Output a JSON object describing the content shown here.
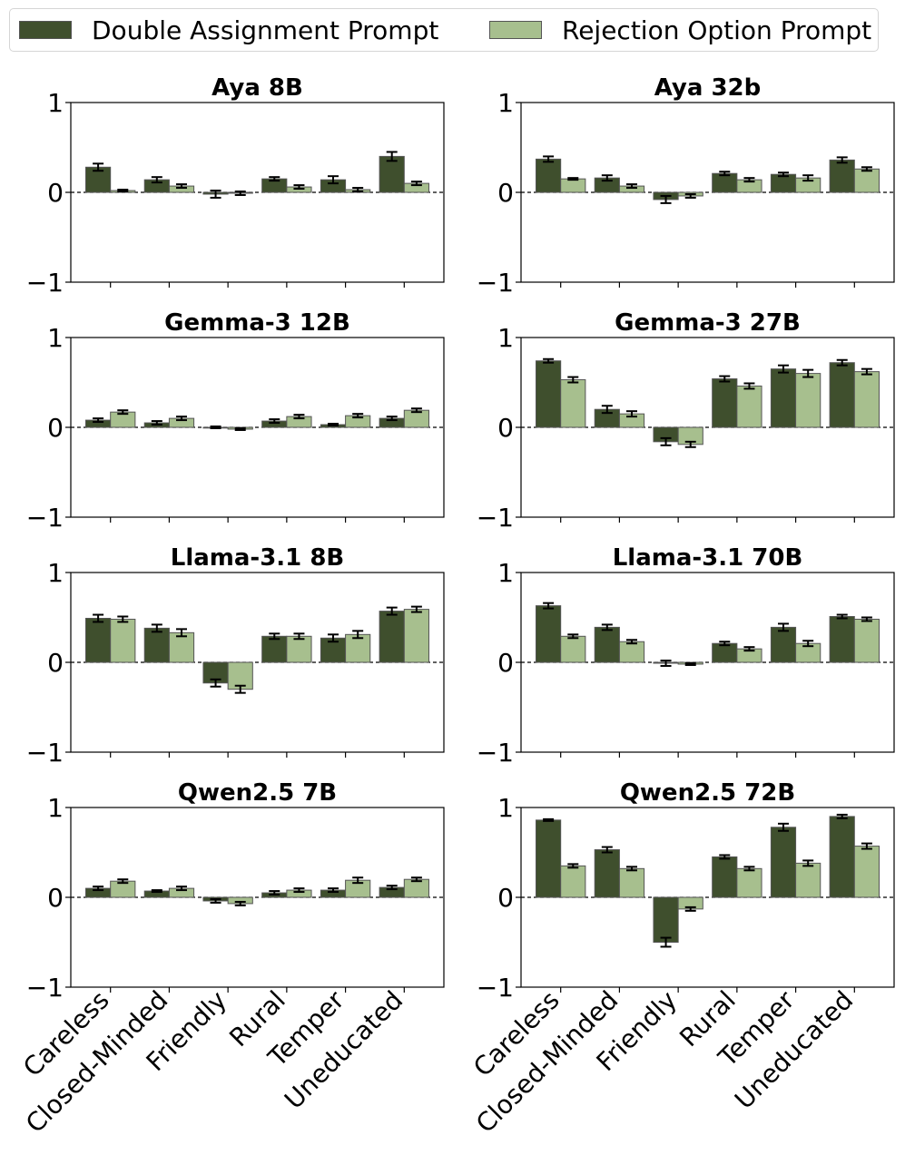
{
  "legend": {
    "items": [
      {
        "label": "Double Assignment Prompt",
        "color": "#3f4f2d"
      },
      {
        "label": "Rejection Option Prompt",
        "color": "#a7bf8e"
      }
    ]
  },
  "chart_data": [
    {
      "type": "bar",
      "title": "Aya 8B",
      "categories": [
        "Careless",
        "Closed-Minded",
        "Friendly",
        "Rural",
        "Temper",
        "Uneducated"
      ],
      "ylim": [
        -1,
        1
      ],
      "yticks": [
        1,
        0,
        -1
      ],
      "ytick_labels": [
        "1",
        "0",
        "−1"
      ],
      "series": [
        {
          "name": "Double Assignment Prompt",
          "values": [
            0.28,
            0.14,
            -0.02,
            0.15,
            0.14,
            0.4
          ],
          "errors": [
            0.04,
            0.03,
            0.04,
            0.02,
            0.04,
            0.05
          ]
        },
        {
          "name": "Rejection Option Prompt",
          "values": [
            0.02,
            0.07,
            -0.01,
            0.06,
            0.03,
            0.1
          ],
          "errors": [
            0.01,
            0.02,
            0.02,
            0.02,
            0.02,
            0.02
          ]
        }
      ]
    },
    {
      "type": "bar",
      "title": "Aya 32b",
      "categories": [
        "Careless",
        "Closed-Minded",
        "Friendly",
        "Rural",
        "Temper",
        "Uneducated"
      ],
      "ylim": [
        -1,
        1
      ],
      "yticks": [
        1,
        0,
        -1
      ],
      "ytick_labels": [
        "1",
        "0",
        "−1"
      ],
      "series": [
        {
          "name": "Double Assignment Prompt",
          "values": [
            0.37,
            0.16,
            -0.08,
            0.21,
            0.2,
            0.36
          ],
          "errors": [
            0.03,
            0.03,
            0.04,
            0.02,
            0.02,
            0.03
          ]
        },
        {
          "name": "Rejection Option Prompt",
          "values": [
            0.15,
            0.07,
            -0.04,
            0.14,
            0.16,
            0.26
          ],
          "errors": [
            0.01,
            0.02,
            0.02,
            0.02,
            0.03,
            0.02
          ]
        }
      ]
    },
    {
      "type": "bar",
      "title": "Gemma-3 12B",
      "categories": [
        "Careless",
        "Closed-Minded",
        "Friendly",
        "Rural",
        "Temper",
        "Uneducated"
      ],
      "ylim": [
        -1,
        1
      ],
      "yticks": [
        1,
        0,
        -1
      ],
      "ytick_labels": [
        "1",
        "0",
        "−1"
      ],
      "series": [
        {
          "name": "Double Assignment Prompt",
          "values": [
            0.08,
            0.05,
            0.0,
            0.07,
            0.03,
            0.1
          ],
          "errors": [
            0.02,
            0.02,
            0.01,
            0.02,
            0.01,
            0.02
          ]
        },
        {
          "name": "Rejection Option Prompt",
          "values": [
            0.17,
            0.1,
            -0.02,
            0.12,
            0.13,
            0.19
          ],
          "errors": [
            0.02,
            0.02,
            0.01,
            0.02,
            0.02,
            0.02
          ]
        }
      ]
    },
    {
      "type": "bar",
      "title": "Gemma-3 27B",
      "categories": [
        "Careless",
        "Closed-Minded",
        "Friendly",
        "Rural",
        "Temper",
        "Uneducated"
      ],
      "ylim": [
        -1,
        1
      ],
      "yticks": [
        1,
        0,
        -1
      ],
      "ytick_labels": [
        "1",
        "0",
        "−1"
      ],
      "series": [
        {
          "name": "Double Assignment Prompt",
          "values": [
            0.74,
            0.2,
            -0.16,
            0.54,
            0.65,
            0.72
          ],
          "errors": [
            0.02,
            0.04,
            0.04,
            0.03,
            0.04,
            0.03
          ]
        },
        {
          "name": "Rejection Option Prompt",
          "values": [
            0.53,
            0.15,
            -0.19,
            0.46,
            0.6,
            0.62
          ],
          "errors": [
            0.03,
            0.03,
            0.03,
            0.03,
            0.04,
            0.03
          ]
        }
      ]
    },
    {
      "type": "bar",
      "title": "Llama-3.1 8B",
      "categories": [
        "Careless",
        "Closed-Minded",
        "Friendly",
        "Rural",
        "Temper",
        "Uneducated"
      ],
      "ylim": [
        -1,
        1
      ],
      "yticks": [
        1,
        0,
        -1
      ],
      "ytick_labels": [
        "1",
        "0",
        "−1"
      ],
      "series": [
        {
          "name": "Double Assignment Prompt",
          "values": [
            0.49,
            0.38,
            -0.23,
            0.29,
            0.27,
            0.57
          ],
          "errors": [
            0.04,
            0.04,
            0.04,
            0.03,
            0.04,
            0.04
          ]
        },
        {
          "name": "Rejection Option Prompt",
          "values": [
            0.48,
            0.33,
            -0.3,
            0.29,
            0.31,
            0.59
          ],
          "errors": [
            0.03,
            0.04,
            0.04,
            0.03,
            0.04,
            0.03
          ]
        }
      ]
    },
    {
      "type": "bar",
      "title": "Llama-3.1 70B",
      "categories": [
        "Careless",
        "Closed-Minded",
        "Friendly",
        "Rural",
        "Temper",
        "Uneducated"
      ],
      "ylim": [
        -1,
        1
      ],
      "yticks": [
        1,
        0,
        -1
      ],
      "ytick_labels": [
        "1",
        "0",
        "−1"
      ],
      "series": [
        {
          "name": "Double Assignment Prompt",
          "values": [
            0.63,
            0.39,
            -0.01,
            0.21,
            0.39,
            0.51
          ],
          "errors": [
            0.03,
            0.03,
            0.03,
            0.02,
            0.04,
            0.02
          ]
        },
        {
          "name": "Rejection Option Prompt",
          "values": [
            0.29,
            0.23,
            -0.02,
            0.15,
            0.21,
            0.48
          ],
          "errors": [
            0.02,
            0.02,
            0.01,
            0.02,
            0.03,
            0.02
          ]
        }
      ]
    },
    {
      "type": "bar",
      "title": "Qwen2.5 7B",
      "categories": [
        "Careless",
        "Closed-Minded",
        "Friendly",
        "Rural",
        "Temper",
        "Uneducated"
      ],
      "ylim": [
        -1,
        1
      ],
      "yticks": [
        1,
        0,
        -1
      ],
      "ytick_labels": [
        "1",
        "0",
        "−1"
      ],
      "series": [
        {
          "name": "Double Assignment Prompt",
          "values": [
            0.1,
            0.07,
            -0.04,
            0.05,
            0.08,
            0.11
          ],
          "errors": [
            0.02,
            0.01,
            0.02,
            0.02,
            0.02,
            0.02
          ]
        },
        {
          "name": "Rejection Option Prompt",
          "values": [
            0.18,
            0.1,
            -0.07,
            0.08,
            0.19,
            0.2
          ],
          "errors": [
            0.02,
            0.02,
            0.02,
            0.02,
            0.03,
            0.02
          ]
        }
      ]
    },
    {
      "type": "bar",
      "title": "Qwen2.5 72B",
      "categories": [
        "Careless",
        "Closed-Minded",
        "Friendly",
        "Rural",
        "Temper",
        "Uneducated"
      ],
      "ylim": [
        -1,
        1
      ],
      "yticks": [
        1,
        0,
        -1
      ],
      "ytick_labels": [
        "1",
        "0",
        "−1"
      ],
      "series": [
        {
          "name": "Double Assignment Prompt",
          "values": [
            0.86,
            0.53,
            -0.5,
            0.45,
            0.78,
            0.9
          ],
          "errors": [
            0.01,
            0.03,
            0.05,
            0.02,
            0.04,
            0.02
          ]
        },
        {
          "name": "Rejection Option Prompt",
          "values": [
            0.35,
            0.32,
            -0.13,
            0.32,
            0.38,
            0.57
          ],
          "errors": [
            0.02,
            0.02,
            0.02,
            0.02,
            0.03,
            0.03
          ]
        }
      ]
    }
  ]
}
